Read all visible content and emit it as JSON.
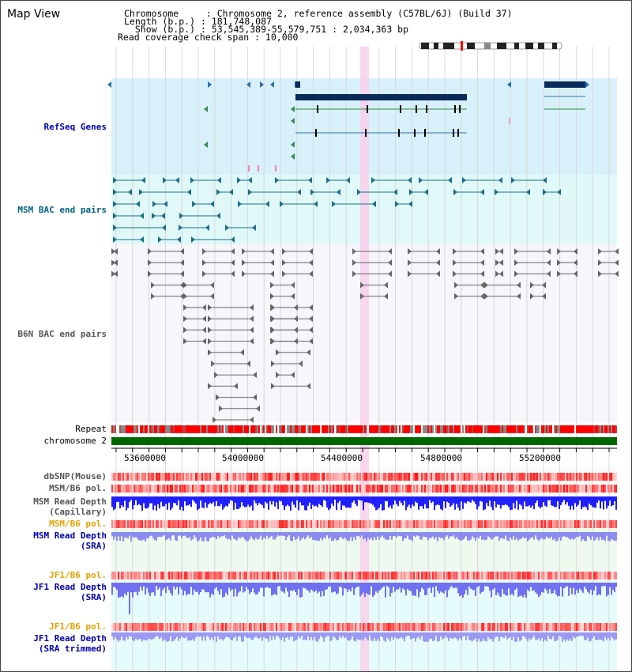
{
  "title": "Map View",
  "header": {
    "chromosome_line": "Chromosome     : Chromosome 2, reference assembly (C57BL/6J) (Build 37)",
    "length_line": "Length (b.p.) : 181,748,087",
    "show_line": "  Show (b.p.) : 53,545,389-55,579,751 : 2,034,363 bp",
    "coverage_line": "Read coverage check span : 10,000"
  },
  "tracks": {
    "refseq": "RefSeq Genes",
    "msm_bac": "MSM BAC end pairs",
    "b6n_bac": "B6N BAC end pairs",
    "repeat": "Repeat",
    "chromosome": "chromosome 2",
    "dbsnp": "dbSNP(Mouse)",
    "msm_b6_pol_1": "MSM/B6 pol.",
    "msm_read_depth_cap_1": "MSM Read Depth",
    "msm_read_depth_cap_2": "(Capillary)",
    "msm_b6_pol_2": "MSM/B6 pol.",
    "msm_read_depth_sra_1": "MSM Read Depth",
    "msm_read_depth_sra_2": "(SRA)",
    "jf1_b6_pol_1": "JF1/B6 pol.",
    "jf1_read_depth_sra_1": "JF1 Read Depth",
    "jf1_read_depth_sra_2": "(SRA)",
    "jf1_b6_pol_2": "JF1/B6 pol.",
    "jf1_read_depth_trim_1": "JF1 Read Depth",
    "jf1_read_depth_trim_2": "(SRA trimmed)"
  },
  "axis_ticks": [
    "53600000",
    "54000000",
    "54400000",
    "54800000",
    "55200000"
  ],
  "colors": {
    "refseq_bg": "#d8f0fa",
    "bac_bg": "#e0f8f8",
    "highlight": "#f8d0ec",
    "gene_dark": "#0a2a5a",
    "chromosome_bar": "#006600",
    "repeat_red": "#ff0000",
    "depth_blue": "#2020ff",
    "label_blue": "#0000aa",
    "label_teal": "#006080",
    "label_orange": "#e8a000",
    "label_gray": "#555555"
  }
}
